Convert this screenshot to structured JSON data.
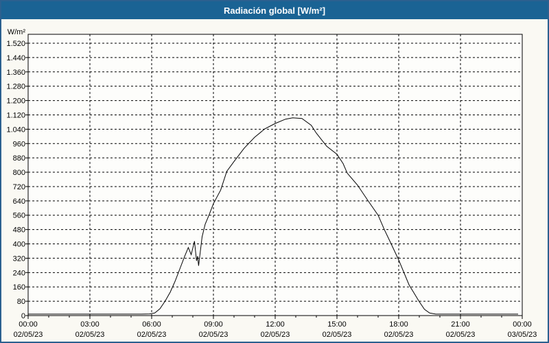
{
  "window": {
    "title": "Radiación global [W/m²]"
  },
  "colors": {
    "titlebar_bg": "#1A6394",
    "titlebar_text": "#FFFFFF",
    "window_border": "#2B608F",
    "window_bg": "#FAF9F3",
    "plot_bg": "#FDFDFB",
    "grid": "#000000",
    "axis": "#000000",
    "series_line": "#000000",
    "label_text": "#000000"
  },
  "chart_data": {
    "type": "line",
    "title": "Radiación global [W/m²]",
    "grid_style": "dashed",
    "legend": "none",
    "y_axis": {
      "unit_label": "W/m²",
      "min": 0,
      "max_gridline": 1520,
      "step": 80,
      "ticks": [
        {
          "value": 1520,
          "label": "1.520"
        },
        {
          "value": 1440,
          "label": "1.440"
        },
        {
          "value": 1360,
          "label": "1.360"
        },
        {
          "value": 1280,
          "label": "1.280"
        },
        {
          "value": 1200,
          "label": "1.200"
        },
        {
          "value": 1120,
          "label": "1.120"
        },
        {
          "value": 1040,
          "label": "1.040"
        },
        {
          "value": 960,
          "label": "960"
        },
        {
          "value": 880,
          "label": "880"
        },
        {
          "value": 800,
          "label": "800"
        },
        {
          "value": 720,
          "label": "720"
        },
        {
          "value": 640,
          "label": "640"
        },
        {
          "value": 560,
          "label": "560"
        },
        {
          "value": 480,
          "label": "480"
        },
        {
          "value": 400,
          "label": "400"
        },
        {
          "value": 320,
          "label": "320"
        },
        {
          "value": 240,
          "label": "240"
        },
        {
          "value": 160,
          "label": "160"
        },
        {
          "value": 80,
          "label": "80"
        },
        {
          "value": 0,
          "label": "0"
        }
      ]
    },
    "x_axis": {
      "hours_span": 24,
      "minor_tick_hours": 1,
      "major_tick_hours": 3,
      "ticks": [
        {
          "hour": 0,
          "time": "00:00",
          "date": "02/05/23"
        },
        {
          "hour": 3,
          "time": "03:00",
          "date": "02/05/23"
        },
        {
          "hour": 6,
          "time": "06:00",
          "date": "02/05/23"
        },
        {
          "hour": 9,
          "time": "09:00",
          "date": "02/05/23"
        },
        {
          "hour": 12,
          "time": "12:00",
          "date": "02/05/23"
        },
        {
          "hour": 15,
          "time": "15:00",
          "date": "02/05/23"
        },
        {
          "hour": 18,
          "time": "18:00",
          "date": "02/05/23"
        },
        {
          "hour": 21,
          "time": "21:00",
          "date": "02/05/23"
        },
        {
          "hour": 24,
          "time": "00:00",
          "date": "03/05/23"
        }
      ]
    },
    "series": [
      {
        "name": "Radiación global",
        "color": "#000000",
        "points": [
          [
            0,
            8
          ],
          [
            0.5,
            8
          ],
          [
            1,
            8
          ],
          [
            1.5,
            8
          ],
          [
            2,
            8
          ],
          [
            2.5,
            8
          ],
          [
            3,
            8
          ],
          [
            3.5,
            8
          ],
          [
            4,
            8
          ],
          [
            4.5,
            8
          ],
          [
            5,
            8
          ],
          [
            5.5,
            8
          ],
          [
            5.9,
            9
          ],
          [
            6.15,
            14
          ],
          [
            6.4,
            38
          ],
          [
            6.65,
            80
          ],
          [
            6.9,
            130
          ],
          [
            7.15,
            195
          ],
          [
            7.4,
            270
          ],
          [
            7.6,
            330
          ],
          [
            7.78,
            380
          ],
          [
            7.92,
            340
          ],
          [
            8.08,
            415
          ],
          [
            8.18,
            305
          ],
          [
            8.23,
            332
          ],
          [
            8.28,
            278
          ],
          [
            8.45,
            440
          ],
          [
            8.6,
            510
          ],
          [
            8.8,
            565
          ],
          [
            9.0,
            625
          ],
          [
            9.35,
            700
          ],
          [
            9.65,
            805
          ],
          [
            10.0,
            860
          ],
          [
            10.5,
            935
          ],
          [
            11.0,
            995
          ],
          [
            11.5,
            1042
          ],
          [
            12.0,
            1072
          ],
          [
            12.5,
            1096
          ],
          [
            12.85,
            1104
          ],
          [
            13.3,
            1100
          ],
          [
            13.75,
            1062
          ],
          [
            14.0,
            1018
          ],
          [
            14.5,
            945
          ],
          [
            15.0,
            900
          ],
          [
            15.3,
            848
          ],
          [
            15.5,
            795
          ],
          [
            16.0,
            728
          ],
          [
            16.5,
            643
          ],
          [
            17.0,
            560
          ],
          [
            17.3,
            480
          ],
          [
            17.6,
            408
          ],
          [
            18.0,
            310
          ],
          [
            18.5,
            172
          ],
          [
            19.0,
            77
          ],
          [
            19.25,
            35
          ],
          [
            19.5,
            14
          ],
          [
            19.8,
            8
          ],
          [
            20.5,
            8
          ],
          [
            21,
            8
          ],
          [
            22,
            8
          ],
          [
            23,
            8
          ],
          [
            23.8,
            8
          ]
        ]
      }
    ]
  }
}
